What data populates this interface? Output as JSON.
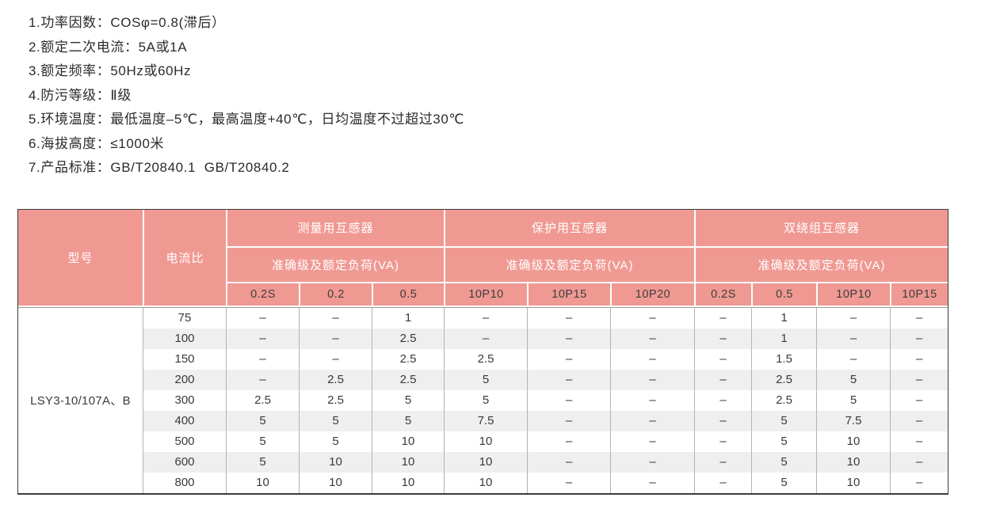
{
  "specs": {
    "items": [
      "1.功率因数：COSφ=0.8(滞后）",
      "2.额定二次电流：5A或1A",
      "3.额定频率：50Hz或60Hz",
      "4.防污等级：Ⅱ级",
      "5.环境温度：最低温度–5℃，最高温度+40℃，日均温度不过超过30℃",
      "6.海拔高度：≤1000米",
      "7.产品标准：GB/T20840.1  GB/T20840.2"
    ]
  },
  "table": {
    "header": {
      "model": "型号",
      "ratio": "电流比",
      "groups": [
        {
          "label": "测量用互感器",
          "sub": "准确级及额定负荷(VA)",
          "cols": [
            "0.2S",
            "0.2",
            "0.5"
          ]
        },
        {
          "label": "保护用互感器",
          "sub": "准确级及额定负荷(VA)",
          "cols": [
            "10P10",
            "10P15",
            "10P20"
          ]
        },
        {
          "label": "双绕组互感器",
          "sub": "准确级及额定负荷(VA)",
          "cols": [
            "0.2S",
            "0.5",
            "10P10",
            "10P15"
          ]
        }
      ]
    },
    "model_value": "LSY3-10/107A、B",
    "rows": [
      {
        "ratio": "75",
        "values": [
          "–",
          "–",
          "1",
          "–",
          "–",
          "–",
          "–",
          "1",
          "–",
          "–"
        ]
      },
      {
        "ratio": "100",
        "values": [
          "–",
          "–",
          "2.5",
          "–",
          "–",
          "–",
          "–",
          "1",
          "–",
          "–"
        ]
      },
      {
        "ratio": "150",
        "values": [
          "–",
          "–",
          "2.5",
          "2.5",
          "–",
          "–",
          "–",
          "1.5",
          "–",
          "–"
        ]
      },
      {
        "ratio": "200",
        "values": [
          "–",
          "2.5",
          "2.5",
          "5",
          "–",
          "–",
          "–",
          "2.5",
          "5",
          "–"
        ]
      },
      {
        "ratio": "300",
        "values": [
          "2.5",
          "2.5",
          "5",
          "5",
          "–",
          "–",
          "–",
          "2.5",
          "5",
          "–"
        ]
      },
      {
        "ratio": "400",
        "values": [
          "5",
          "5",
          "5",
          "7.5",
          "–",
          "–",
          "–",
          "5",
          "7.5",
          "–"
        ]
      },
      {
        "ratio": "500",
        "values": [
          "5",
          "5",
          "10",
          "10",
          "–",
          "–",
          "–",
          "5",
          "10",
          "–"
        ]
      },
      {
        "ratio": "600",
        "values": [
          "5",
          "10",
          "10",
          "10",
          "–",
          "–",
          "–",
          "5",
          "10",
          "–"
        ]
      },
      {
        "ratio": "800",
        "values": [
          "10",
          "10",
          "10",
          "10",
          "–",
          "–",
          "–",
          "5",
          "10",
          "–"
        ]
      }
    ],
    "colors": {
      "header_pink": "#f09993",
      "stripe_gray": "#efefef",
      "outer_border": "#3b3b3b",
      "inner_border": "#b3b3b3"
    }
  }
}
